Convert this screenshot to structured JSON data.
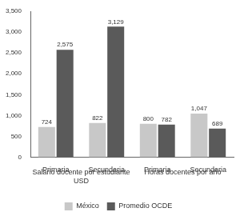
{
  "chart_data": {
    "type": "bar",
    "category_groups": [
      {
        "label": [
          "Salario docente por estudiante",
          "USD"
        ],
        "categories": [
          "Primaria",
          "Secundaria"
        ]
      },
      {
        "label": [
          "Horas docentes por año"
        ],
        "categories": [
          "Primaria",
          "Secundaria"
        ]
      }
    ],
    "series": [
      {
        "name": "México",
        "color": "#c8c8c8",
        "values": [
          724,
          822,
          800,
          1047
        ],
        "value_labels": [
          "724",
          "822",
          "800",
          "1,047"
        ]
      },
      {
        "name": "Promedio OCDE",
        "color": "#5a5a5a",
        "values": [
          2575,
          3129,
          782,
          689
        ],
        "value_labels": [
          "2,575",
          "3,129",
          "782",
          "689"
        ]
      }
    ],
    "ylim": [
      0,
      3500
    ],
    "yticks": [
      0,
      500,
      {
        "value": 1000,
        "label": "1,000"
      },
      {
        "value": 1500,
        "label": "1,500"
      },
      {
        "value": 2000,
        "label": "2,000"
      },
      {
        "value": 2500,
        "label": "2,500"
      },
      {
        "value": 3000,
        "label": "3,000"
      },
      {
        "value": 3500,
        "label": "3,500"
      }
    ],
    "grid": false,
    "legend": "bottom",
    "data_labels": true
  }
}
